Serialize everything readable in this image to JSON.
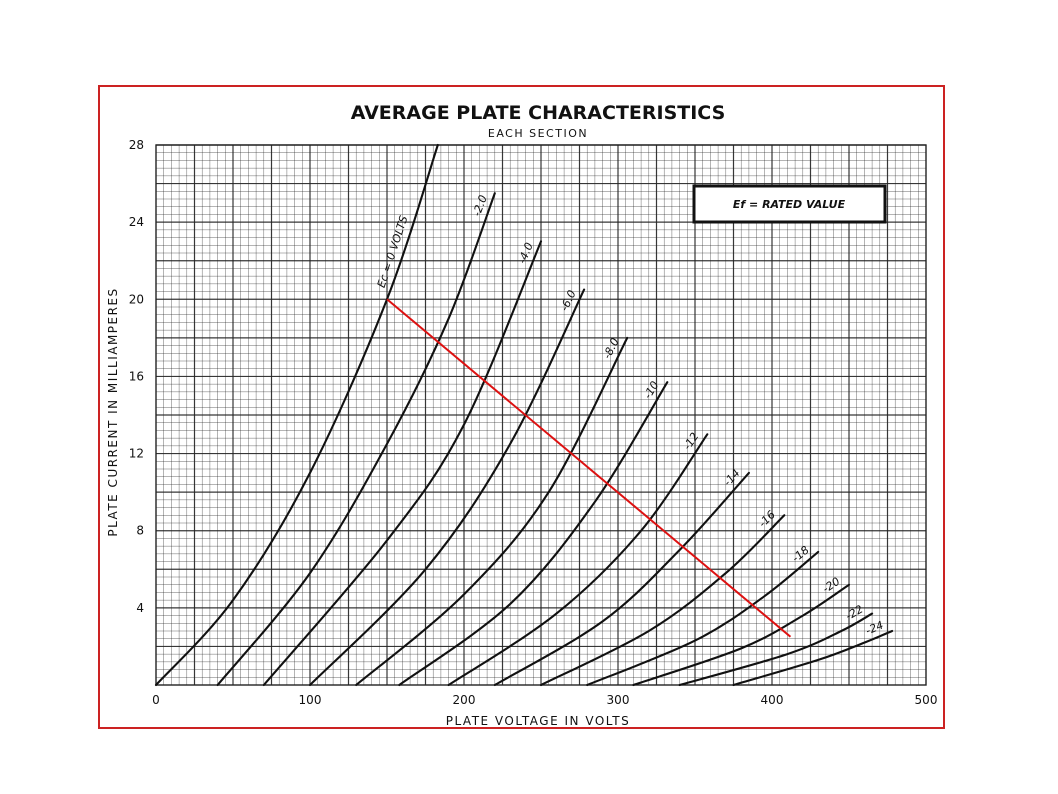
{
  "chart_data": {
    "type": "line",
    "title": "AVERAGE PLATE CHARACTERISTICS",
    "subtitle": "EACH SECTION",
    "xlabel": "PLATE VOLTAGE IN VOLTS",
    "ylabel": "PLATE CURRENT IN MILLIAMPERES",
    "xlim": [
      0,
      500
    ],
    "ylim": [
      0,
      28
    ],
    "xticks": [
      "0",
      "100",
      "200",
      "300",
      "400",
      "500"
    ],
    "yticks": [
      "4",
      "8",
      "12",
      "16",
      "20",
      "24",
      "28"
    ],
    "grid": true,
    "annotation": "Ef = RATED VALUE",
    "series": [
      {
        "name": "Ec = 0 VOLTS",
        "points": [
          [
            0,
            0
          ],
          [
            50,
            4.4
          ],
          [
            100,
            11
          ],
          [
            150,
            20
          ],
          [
            183,
            28
          ]
        ]
      },
      {
        "name": "-2.0",
        "points": [
          [
            40,
            0
          ],
          [
            100,
            5.8
          ],
          [
            150,
            12.5
          ],
          [
            190,
            19
          ],
          [
            220,
            25.5
          ]
        ]
      },
      {
        "name": "-4.0",
        "points": [
          [
            70,
            0
          ],
          [
            150,
            7.5
          ],
          [
            200,
            13.5
          ],
          [
            250,
            23
          ]
        ]
      },
      {
        "name": "-6.0",
        "points": [
          [
            100,
            0
          ],
          [
            175,
            6
          ],
          [
            230,
            12.5
          ],
          [
            278,
            20.5
          ]
        ]
      },
      {
        "name": "-8.0",
        "points": [
          [
            130,
            0
          ],
          [
            200,
            4.7
          ],
          [
            255,
            10
          ],
          [
            306,
            18
          ]
        ]
      },
      {
        "name": "-10",
        "points": [
          [
            158,
            0
          ],
          [
            230,
            4.2
          ],
          [
            285,
            9.5
          ],
          [
            332,
            15.7
          ]
        ]
      },
      {
        "name": "-12",
        "points": [
          [
            190,
            0
          ],
          [
            260,
            3.7
          ],
          [
            315,
            8
          ],
          [
            358,
            13
          ]
        ]
      },
      {
        "name": "-14",
        "points": [
          [
            220,
            0
          ],
          [
            290,
            3.3
          ],
          [
            340,
            7
          ],
          [
            385,
            11
          ]
        ]
      },
      {
        "name": "-16",
        "points": [
          [
            250,
            0
          ],
          [
            320,
            2.8
          ],
          [
            370,
            5.8
          ],
          [
            408,
            8.8
          ]
        ]
      },
      {
        "name": "-18",
        "points": [
          [
            280,
            0
          ],
          [
            350,
            2.3
          ],
          [
            395,
            4.6
          ],
          [
            430,
            6.9
          ]
        ]
      },
      {
        "name": "-20",
        "points": [
          [
            310,
            0
          ],
          [
            380,
            1.9
          ],
          [
            420,
            3.6
          ],
          [
            450,
            5.2
          ]
        ]
      },
      {
        "name": "-22",
        "points": [
          [
            340,
            0
          ],
          [
            410,
            1.6
          ],
          [
            445,
            2.8
          ],
          [
            465,
            3.7
          ]
        ]
      },
      {
        "name": "-24",
        "points": [
          [
            375,
            0
          ],
          [
            430,
            1.3
          ],
          [
            460,
            2.2
          ],
          [
            478,
            2.8
          ]
        ]
      }
    ],
    "load_line": {
      "points": [
        [
          150,
          20
        ],
        [
          412,
          2.5
        ]
      ],
      "color": "#dd1111"
    },
    "colors": {
      "frame": "#cc2222",
      "curves": "#111111",
      "grid": "#222222",
      "load_line": "#dd1111"
    }
  }
}
